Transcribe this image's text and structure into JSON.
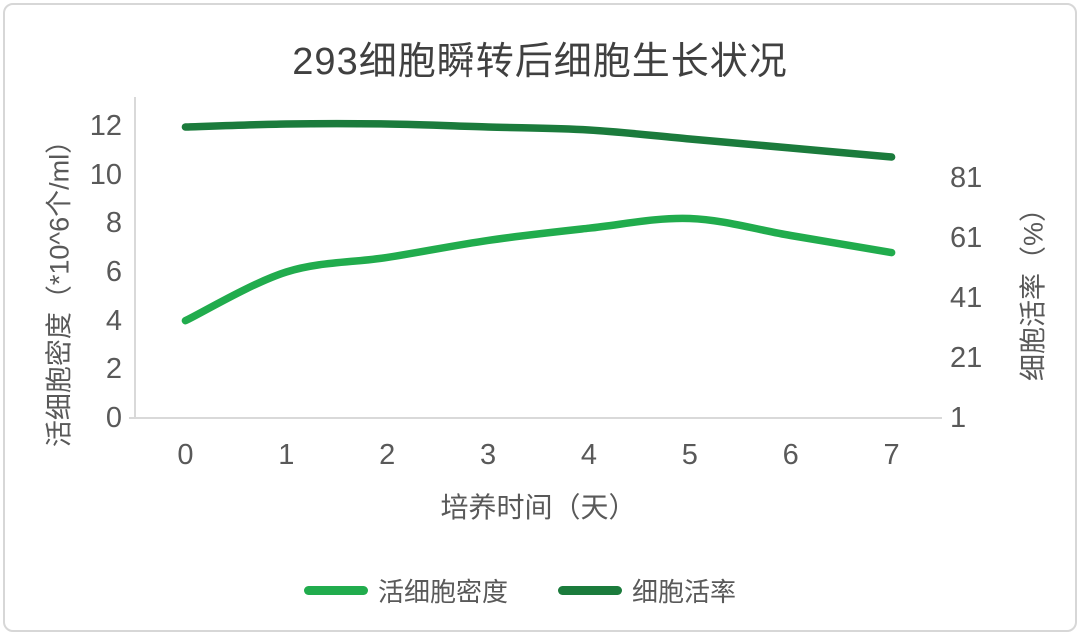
{
  "chart_data": {
    "type": "line",
    "title": "293细胞瞬转后细胞生长状况",
    "xlabel": "培养时间（天）",
    "x": [
      0,
      1,
      2,
      3,
      4,
      5,
      6,
      7
    ],
    "y_left": {
      "label": "活细胞密度（*10^6个/ml）",
      "ticks": [
        0,
        2,
        4,
        6,
        8,
        10,
        12
      ],
      "range": [
        0,
        12
      ]
    },
    "y_right": {
      "label": "细胞活率（%）",
      "ticks": [
        1,
        21,
        41,
        61,
        81
      ],
      "range": [
        1,
        101
      ]
    },
    "series": [
      {
        "name": "活细胞密度",
        "axis": "left",
        "color": "#21AC4D",
        "values": [
          4.0,
          6.0,
          6.6,
          7.3,
          7.8,
          8.2,
          7.5,
          6.8
        ]
      },
      {
        "name": "细胞活率",
        "axis": "right",
        "color": "#1B7B3C",
        "values": [
          98,
          99,
          99,
          98,
          97,
          94,
          91,
          88
        ]
      }
    ],
    "legend_position": "bottom",
    "grid": false,
    "smooth_lines": true,
    "colors": {
      "axis_line": "#D9D9D9",
      "tick_text": "#595959",
      "title_text": "#404040",
      "frame_border": "#D7D7D7"
    }
  }
}
